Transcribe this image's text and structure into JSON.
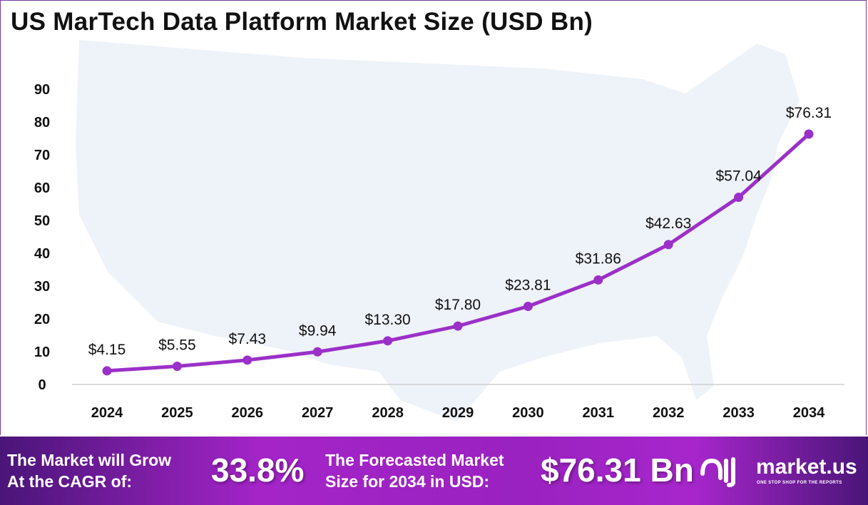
{
  "chart_data": {
    "type": "line",
    "title": "US MarTech Data Platform Market Size (USD Bn)",
    "categories": [
      "2024",
      "2025",
      "2026",
      "2027",
      "2028",
      "2029",
      "2030",
      "2031",
      "2032",
      "2033",
      "2034"
    ],
    "values": [
      4.15,
      5.55,
      7.43,
      9.94,
      13.3,
      17.8,
      23.81,
      31.86,
      42.63,
      57.04,
      76.31
    ],
    "data_labels": [
      "$4.15",
      "$5.55",
      "$7.43",
      "$9.94",
      "$13.30",
      "$17.80",
      "$23.81",
      "$31.86",
      "$42.63",
      "$57.04",
      "$76.31"
    ],
    "yticks": [
      0,
      10,
      20,
      30,
      40,
      50,
      60,
      70,
      80,
      90
    ],
    "ylim": [
      0,
      90
    ],
    "grid": false,
    "line_color": "#9b30c8"
  },
  "footer": {
    "cagr_label_1": "The Market will Grow",
    "cagr_label_2": "At the CAGR of:",
    "cagr_value": "33.8%",
    "forecast_label_1": "The Forecasted Market",
    "forecast_label_2": "Size for 2034 in USD:",
    "forecast_value": "$76.31 Bn",
    "brand": "market.us",
    "tagline": "ONE STOP SHOP FOR THE REPORTS"
  }
}
